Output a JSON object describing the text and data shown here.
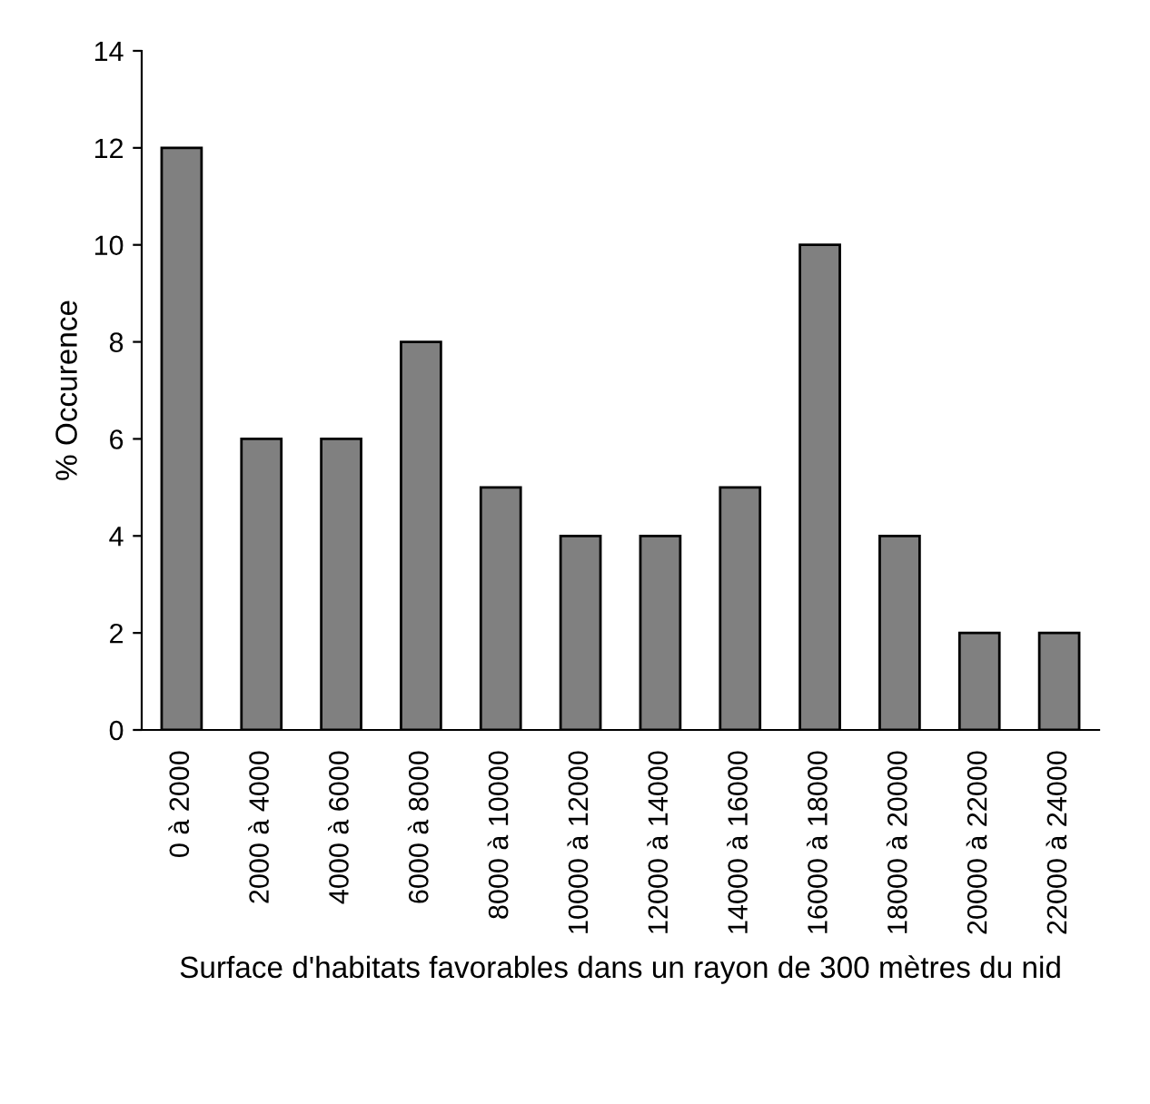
{
  "chart_data": {
    "type": "bar",
    "xlabel": "Surface d'habitats favorables dans un rayon de 300 mètres du nid",
    "ylabel": "% Occurence",
    "categories": [
      "0 à 2000",
      "2000 à 4000",
      "4000 à 6000",
      "6000 à 8000",
      "8000 à 10000",
      "10000 à 12000",
      "12000 à 14000",
      "14000 à 16000",
      "16000 à 18000",
      "18000 à 20000",
      "20000 à 22000",
      "22000 à 24000"
    ],
    "values": [
      12,
      6,
      6,
      8,
      5,
      4,
      4,
      5,
      10,
      4,
      2,
      2
    ],
    "color": "#808080",
    "ylim": [
      0,
      14
    ],
    "yticks": [
      0,
      2,
      4,
      6,
      8,
      10,
      12,
      14
    ],
    "grid": false
  }
}
